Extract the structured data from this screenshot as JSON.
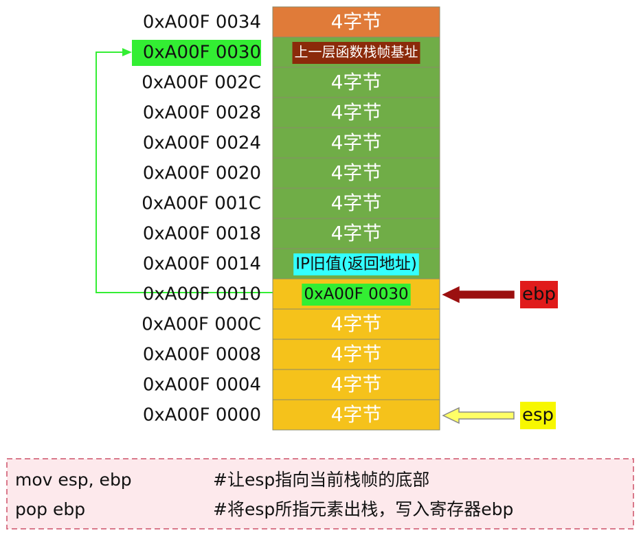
{
  "rows": [
    {
      "address": "0xA00F 0034",
      "cell": "4字节",
      "color": "#e07b39"
    },
    {
      "address": "0xA00F 0030",
      "cell": "上一层函数栈帧基址",
      "color": "#70ad47",
      "address_highlight": "#33ee33",
      "cell_highlight": "#8b2a0a"
    },
    {
      "address": "0xA00F 002C",
      "cell": "4字节",
      "color": "#70ad47"
    },
    {
      "address": "0xA00F 0028",
      "cell": "4字节",
      "color": "#70ad47"
    },
    {
      "address": "0xA00F 0024",
      "cell": "4字节",
      "color": "#70ad47"
    },
    {
      "address": "0xA00F 0020",
      "cell": "4字节",
      "color": "#70ad47"
    },
    {
      "address": "0xA00F 001C",
      "cell": "4字节",
      "color": "#70ad47"
    },
    {
      "address": "0xA00F 0018",
      "cell": "4字节",
      "color": "#70ad47"
    },
    {
      "address": "0xA00F 0014",
      "cell": "IP旧值(返回地址)",
      "color": "#70ad47",
      "cell_highlight": "#33ffff"
    },
    {
      "address": "0xA00F 0010",
      "cell": "0xA00F 0030",
      "color": "#f5c21b",
      "cell_highlight": "#33ee33"
    },
    {
      "address": "0xA00F 000C",
      "cell": "4字节",
      "color": "#f5c21b"
    },
    {
      "address": "0xA00F 0008",
      "cell": "4字节",
      "color": "#f5c21b"
    },
    {
      "address": "0xA00F 0004",
      "cell": "4字节",
      "color": "#f5c21b"
    },
    {
      "address": "0xA00F 0000",
      "cell": "4字节",
      "color": "#f5c21b"
    }
  ],
  "pointers": [
    {
      "label": "ebp",
      "row": 9,
      "color": "#e01b1b"
    },
    {
      "label": "esp",
      "row": 13,
      "color": "#f7f700"
    }
  ],
  "code": [
    {
      "instruction": "mov esp, ebp",
      "comment": "#让esp指向当前栈帧的底部"
    },
    {
      "instruction": "pop ebp",
      "comment": "#将esp所指元素出栈，写入寄存器ebp"
    }
  ]
}
